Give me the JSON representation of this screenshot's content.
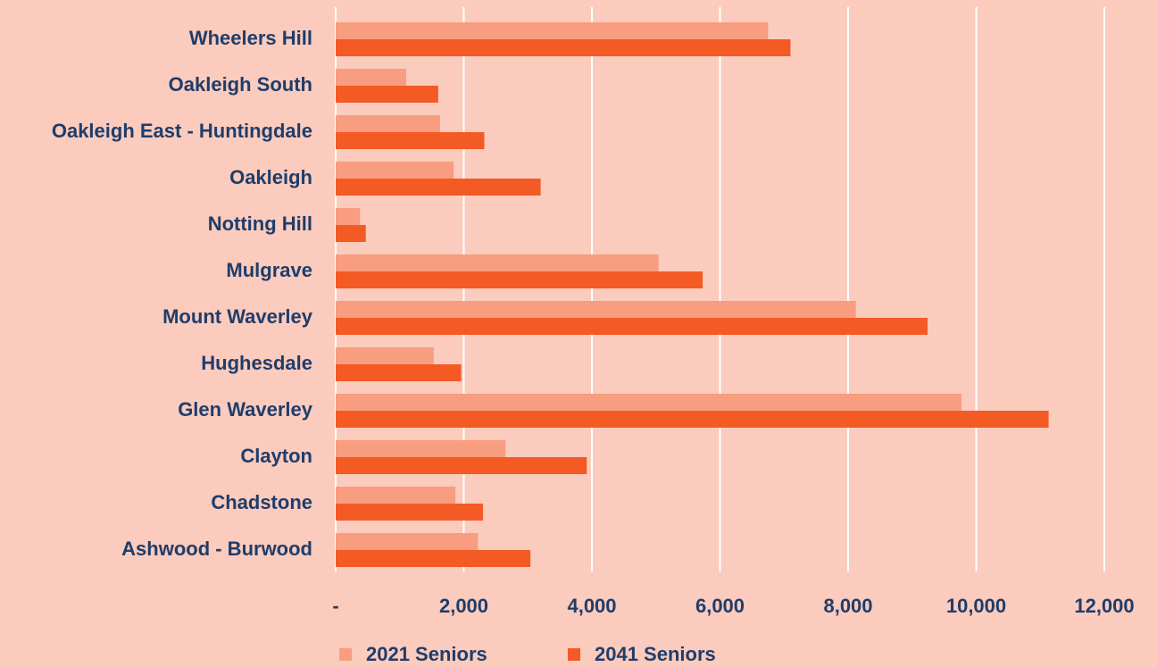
{
  "chart_data": {
    "type": "hbar",
    "categories": [
      "Wheelers Hill",
      "Oakleigh South",
      "Oakleigh East - Huntingdale",
      "Oakleigh",
      "Notting Hill",
      "Mulgrave",
      "Mount Waverley",
      "Hughesdale",
      "Glen Waverley",
      "Clayton",
      "Chadstone",
      "Ashwood - Burwood"
    ],
    "series": [
      {
        "name": "2021 Seniors",
        "color": "#f89d7f",
        "values": [
          6750,
          1100,
          1630,
          1840,
          380,
          5040,
          8120,
          1530,
          9770,
          2650,
          1870,
          2220
        ]
      },
      {
        "name": "2041 Seniors",
        "color": "#f35a24",
        "values": [
          7100,
          1600,
          2320,
          3200,
          470,
          5730,
          9240,
          1960,
          11130,
          3920,
          2300,
          3040
        ]
      }
    ],
    "xlim": [
      0,
      12000
    ],
    "xticks": [
      {
        "value": 0,
        "label": "-"
      },
      {
        "value": 2000,
        "label": "2,000"
      },
      {
        "value": 4000,
        "label": "4,000"
      },
      {
        "value": 6000,
        "label": "6,000"
      },
      {
        "value": 8000,
        "label": "8,000"
      },
      {
        "value": 10000,
        "label": "10,000"
      },
      {
        "value": 12000,
        "label": "12,000"
      }
    ],
    "grid": true,
    "legend": "bottom"
  }
}
